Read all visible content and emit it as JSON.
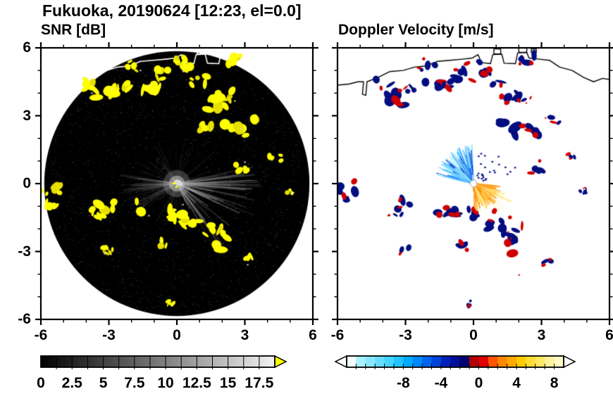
{
  "title": "Fukuoka, 20190624 [12:23, el=0.0]",
  "panels": [
    {
      "subtitle": "SNR [dB]"
    },
    {
      "subtitle": "Doppler Velocity [m/s]"
    }
  ],
  "axes": {
    "x_range": [
      -6,
      6
    ],
    "y_range": [
      -6,
      6
    ],
    "x_tick_values": [
      -6,
      -3,
      0,
      3,
      6
    ],
    "x_tick_labels": [
      "-6",
      "-3",
      "0",
      "3",
      "6"
    ],
    "y_tick_values": [
      6,
      3,
      0,
      -3,
      -6
    ],
    "y_tick_labels": [
      "6",
      "3",
      "0",
      "-3",
      "-6"
    ],
    "minor_tick_step": 1
  },
  "colorbars": {
    "snr": {
      "min": 0,
      "max": 18.75,
      "tick_step": 1.25,
      "labels": [
        "0",
        "2.5",
        "5",
        "7.5",
        "10",
        "12.5",
        "15",
        "17.5"
      ],
      "label_values": [
        0,
        2.5,
        5,
        7.5,
        10,
        12.5,
        15,
        17.5
      ],
      "gradient_start": "#000000",
      "gradient_end": "#f2f2f2",
      "overflow_color": "#ffff00"
    },
    "velocity": {
      "min": -14,
      "max": 9,
      "tick_step": 1,
      "labels": [
        "-8",
        "-4",
        "0",
        "4",
        "8"
      ],
      "label_values": [
        -8,
        -4,
        0,
        4,
        8
      ],
      "underflow_color": "#ffffff",
      "overflow_color": "#ffffff",
      "segment_colors": [
        "#f0ffff",
        "#aaf0ff",
        "#88e8ff",
        "#66ddff",
        "#44d4ff",
        "#22c4ff",
        "#00aaff",
        "#0088ff",
        "#0066f0",
        "#0044dd",
        "#0022bb",
        "#000f99",
        "#000070",
        "#b30000",
        "#e00000",
        "#ff5500",
        "#ff8800",
        "#ffaa00",
        "#ffcc00",
        "#ffdd33",
        "#ffe866",
        "#fff199",
        "#fff8c4"
      ]
    }
  },
  "colors": {
    "snr_disk": "#000000",
    "echo_yellow": "#ffff00",
    "clutter_navy": "#000d80",
    "clutter_red": "#cf0000",
    "coast_left": "#ffffff",
    "coast_right": "#000000"
  },
  "map_coastline": [
    [
      -6,
      4.35
    ],
    [
      -5.5,
      4.4
    ],
    [
      -5.1,
      4.5
    ],
    [
      -4.85,
      4.5
    ],
    [
      -4.9,
      3.95
    ],
    [
      -4.75,
      3.9
    ],
    [
      -4.7,
      4.5
    ],
    [
      -4.2,
      4.7
    ],
    [
      -3.7,
      4.95
    ],
    [
      -3.1,
      5.0
    ],
    [
      -2.6,
      5.15
    ],
    [
      -2.1,
      5.2
    ],
    [
      -1.6,
      5.4
    ],
    [
      -1.05,
      5.45
    ],
    [
      -0.5,
      5.5
    ],
    [
      -0.05,
      5.55
    ],
    [
      0.2,
      5.7
    ],
    [
      0.35,
      5.35
    ],
    [
      0.75,
      5.3
    ],
    [
      0.85,
      5.7
    ],
    [
      1.25,
      5.72
    ],
    [
      1.35,
      5.32
    ],
    [
      1.85,
      5.3
    ],
    [
      1.95,
      5.78
    ],
    [
      2.35,
      5.8
    ],
    [
      2.45,
      5.55
    ],
    [
      2.9,
      5.5
    ],
    [
      3.35,
      5.45
    ],
    [
      3.8,
      5.15
    ],
    [
      4.35,
      5.0
    ],
    [
      4.85,
      4.7
    ],
    [
      5.3,
      4.5
    ],
    [
      5.7,
      4.65
    ],
    [
      6.0,
      4.6
    ]
  ],
  "map_structures": [
    [
      0.9,
      5.95,
      0.3,
      0.22
    ],
    [
      2.0,
      6.05,
      0.35,
      0.25
    ],
    [
      2.55,
      5.95,
      0.22,
      0.16
    ]
  ],
  "echo_patches": [
    [
      -3.9,
      4.4,
      0.5
    ],
    [
      -3.4,
      3.8,
      0.7
    ],
    [
      -2.9,
      4.15,
      0.35
    ],
    [
      -1.8,
      4.25,
      0.55
    ],
    [
      -1.15,
      4.35,
      0.5
    ],
    [
      -0.55,
      4.8,
      0.45
    ],
    [
      0.1,
      5.35,
      0.4
    ],
    [
      0.55,
      5.05,
      0.5
    ],
    [
      0.95,
      4.6,
      0.45
    ],
    [
      1.7,
      3.6,
      0.6
    ],
    [
      2.15,
      3.9,
      0.4
    ],
    [
      1.55,
      2.45,
      0.65
    ],
    [
      2.7,
      2.4,
      0.5
    ],
    [
      3.5,
      2.9,
      0.45
    ],
    [
      2.75,
      0.75,
      0.4
    ],
    [
      -5.6,
      -0.2,
      0.5
    ],
    [
      -5.4,
      -0.8,
      0.45
    ],
    [
      -3.0,
      -0.9,
      0.5
    ],
    [
      -3.45,
      -1.3,
      0.35
    ],
    [
      -1.3,
      -1.05,
      0.55
    ],
    [
      -0.5,
      -1.25,
      0.5
    ],
    [
      0.2,
      -1.3,
      0.55
    ],
    [
      0.6,
      -1.6,
      0.5
    ],
    [
      1.1,
      -1.85,
      0.55
    ],
    [
      1.7,
      -2.2,
      0.5
    ],
    [
      2.05,
      -2.65,
      0.6
    ],
    [
      -0.5,
      -2.7,
      0.45
    ],
    [
      -3.0,
      -2.95,
      0.3
    ],
    [
      -0.3,
      -5.3,
      0.25
    ],
    [
      -2.0,
      5.2,
      0.4
    ],
    [
      2.4,
      5.5,
      0.45
    ],
    [
      4.35,
      1.15,
      0.3
    ],
    [
      4.9,
      -0.35,
      0.25
    ],
    [
      3.3,
      -3.4,
      0.35
    ]
  ],
  "chart_data": [
    {
      "type": "heatmap",
      "variant": "radar_ppi",
      "title": "SNR [dB]",
      "x_range": [
        -6,
        6
      ],
      "y_range": [
        -6,
        6
      ],
      "x_ticks": [
        -6,
        -3,
        0,
        3,
        6
      ],
      "y_ticks": [
        -6,
        -3,
        0,
        3,
        6
      ],
      "scan_radius": 5.85,
      "background_inside_scan": "#000000",
      "colorbar": {
        "min": 0,
        "max": 18.75,
        "label_values": [
          0,
          2.5,
          5,
          7.5,
          10,
          12.5,
          15,
          17.5
        ],
        "colormap": "grayscale black to white",
        "overflow_arrow_color": "#ffff00"
      },
      "clutter_fans": [
        {
          "angle_deg": [
            -65,
            15
          ],
          "min_length": 0.8,
          "max_length": 3.8,
          "count": 70,
          "alpha": [
            0.08,
            0.3
          ],
          "color": "#c8c8c8"
        },
        {
          "angle_deg": [
            165,
            215
          ],
          "min_length": 0.6,
          "max_length": 2.6,
          "count": 35,
          "alpha": [
            0.06,
            0.22
          ],
          "color": "#b4b4b4"
        },
        {
          "angle_deg": [
            0,
            360
          ],
          "min_length": 0.5,
          "max_length": 2.2,
          "count": 90,
          "alpha": [
            0.03,
            0.1
          ],
          "color": "#aaaaaa"
        }
      ],
      "note": "Black radar disk with gray noise speckle, gray radial clutter streaks (strongest toward east-southeast and west), yellow high-SNR echo patches listed in echo_patches, white coastline near top"
    },
    {
      "type": "heatmap",
      "variant": "radar_ppi",
      "title": "Doppler Velocity [m/s]",
      "x_range": [
        -6,
        6
      ],
      "y_range": [
        -6,
        6
      ],
      "x_ticks": [
        -6,
        -3,
        0,
        3,
        6
      ],
      "y_ticks": [
        -6,
        -3,
        0,
        3,
        6
      ],
      "colorbar": {
        "min": -14,
        "max": 9,
        "label_values": [
          -8,
          -4,
          0,
          4,
          8
        ],
        "colormap": "cyan-blue-navy / red-orange-yellow-white diverging"
      },
      "negative_fan": {
        "angle_deg": [
          92,
          170
        ],
        "min_length": 0.3,
        "max_length": 1.7,
        "count": 130,
        "colors": [
          "#aee9ff",
          "#7fd4ff",
          "#4fb8ff",
          "#2a8cff",
          "#1f5fe0",
          "#0d35c0",
          "#7fe8ff"
        ]
      },
      "positive_fan": {
        "angle_deg": [
          -88,
          -4
        ],
        "min_length": 0.25,
        "max_length": 1.25,
        "count": 150,
        "colors": [
          "#ff9100",
          "#ffa733",
          "#ffbf40",
          "#ffd24d",
          "#ffe680",
          "#ff8c1a"
        ]
      },
      "positive_halo": {
        "angle_deg": [
          -50,
          -15
        ],
        "min_length": 1.2,
        "max_length": 1.95,
        "count": 14,
        "colors": [
          "#ffefa0",
          "#fff4c0"
        ]
      },
      "scatter_dots": [
        {
          "color": "#000d80",
          "angle_deg": [
            15,
            85
          ],
          "radius": [
            0.3,
            2.0
          ],
          "count": 26,
          "size": 2.6
        },
        {
          "color": "#cf0000",
          "angle_deg": [
            -100,
            60
          ],
          "radius": [
            2.3,
            5.0
          ],
          "count": 6,
          "size": 2.4
        }
      ],
      "center_hole_radius": 0.15,
      "note": "White background, black coastline, scattered clutter patches of dark navy with red fringes at echo_patches positions, cyan-blue negative-velocity fan toward upper left and orange-yellow positive-velocity fan toward lower right of radar center"
    }
  ]
}
